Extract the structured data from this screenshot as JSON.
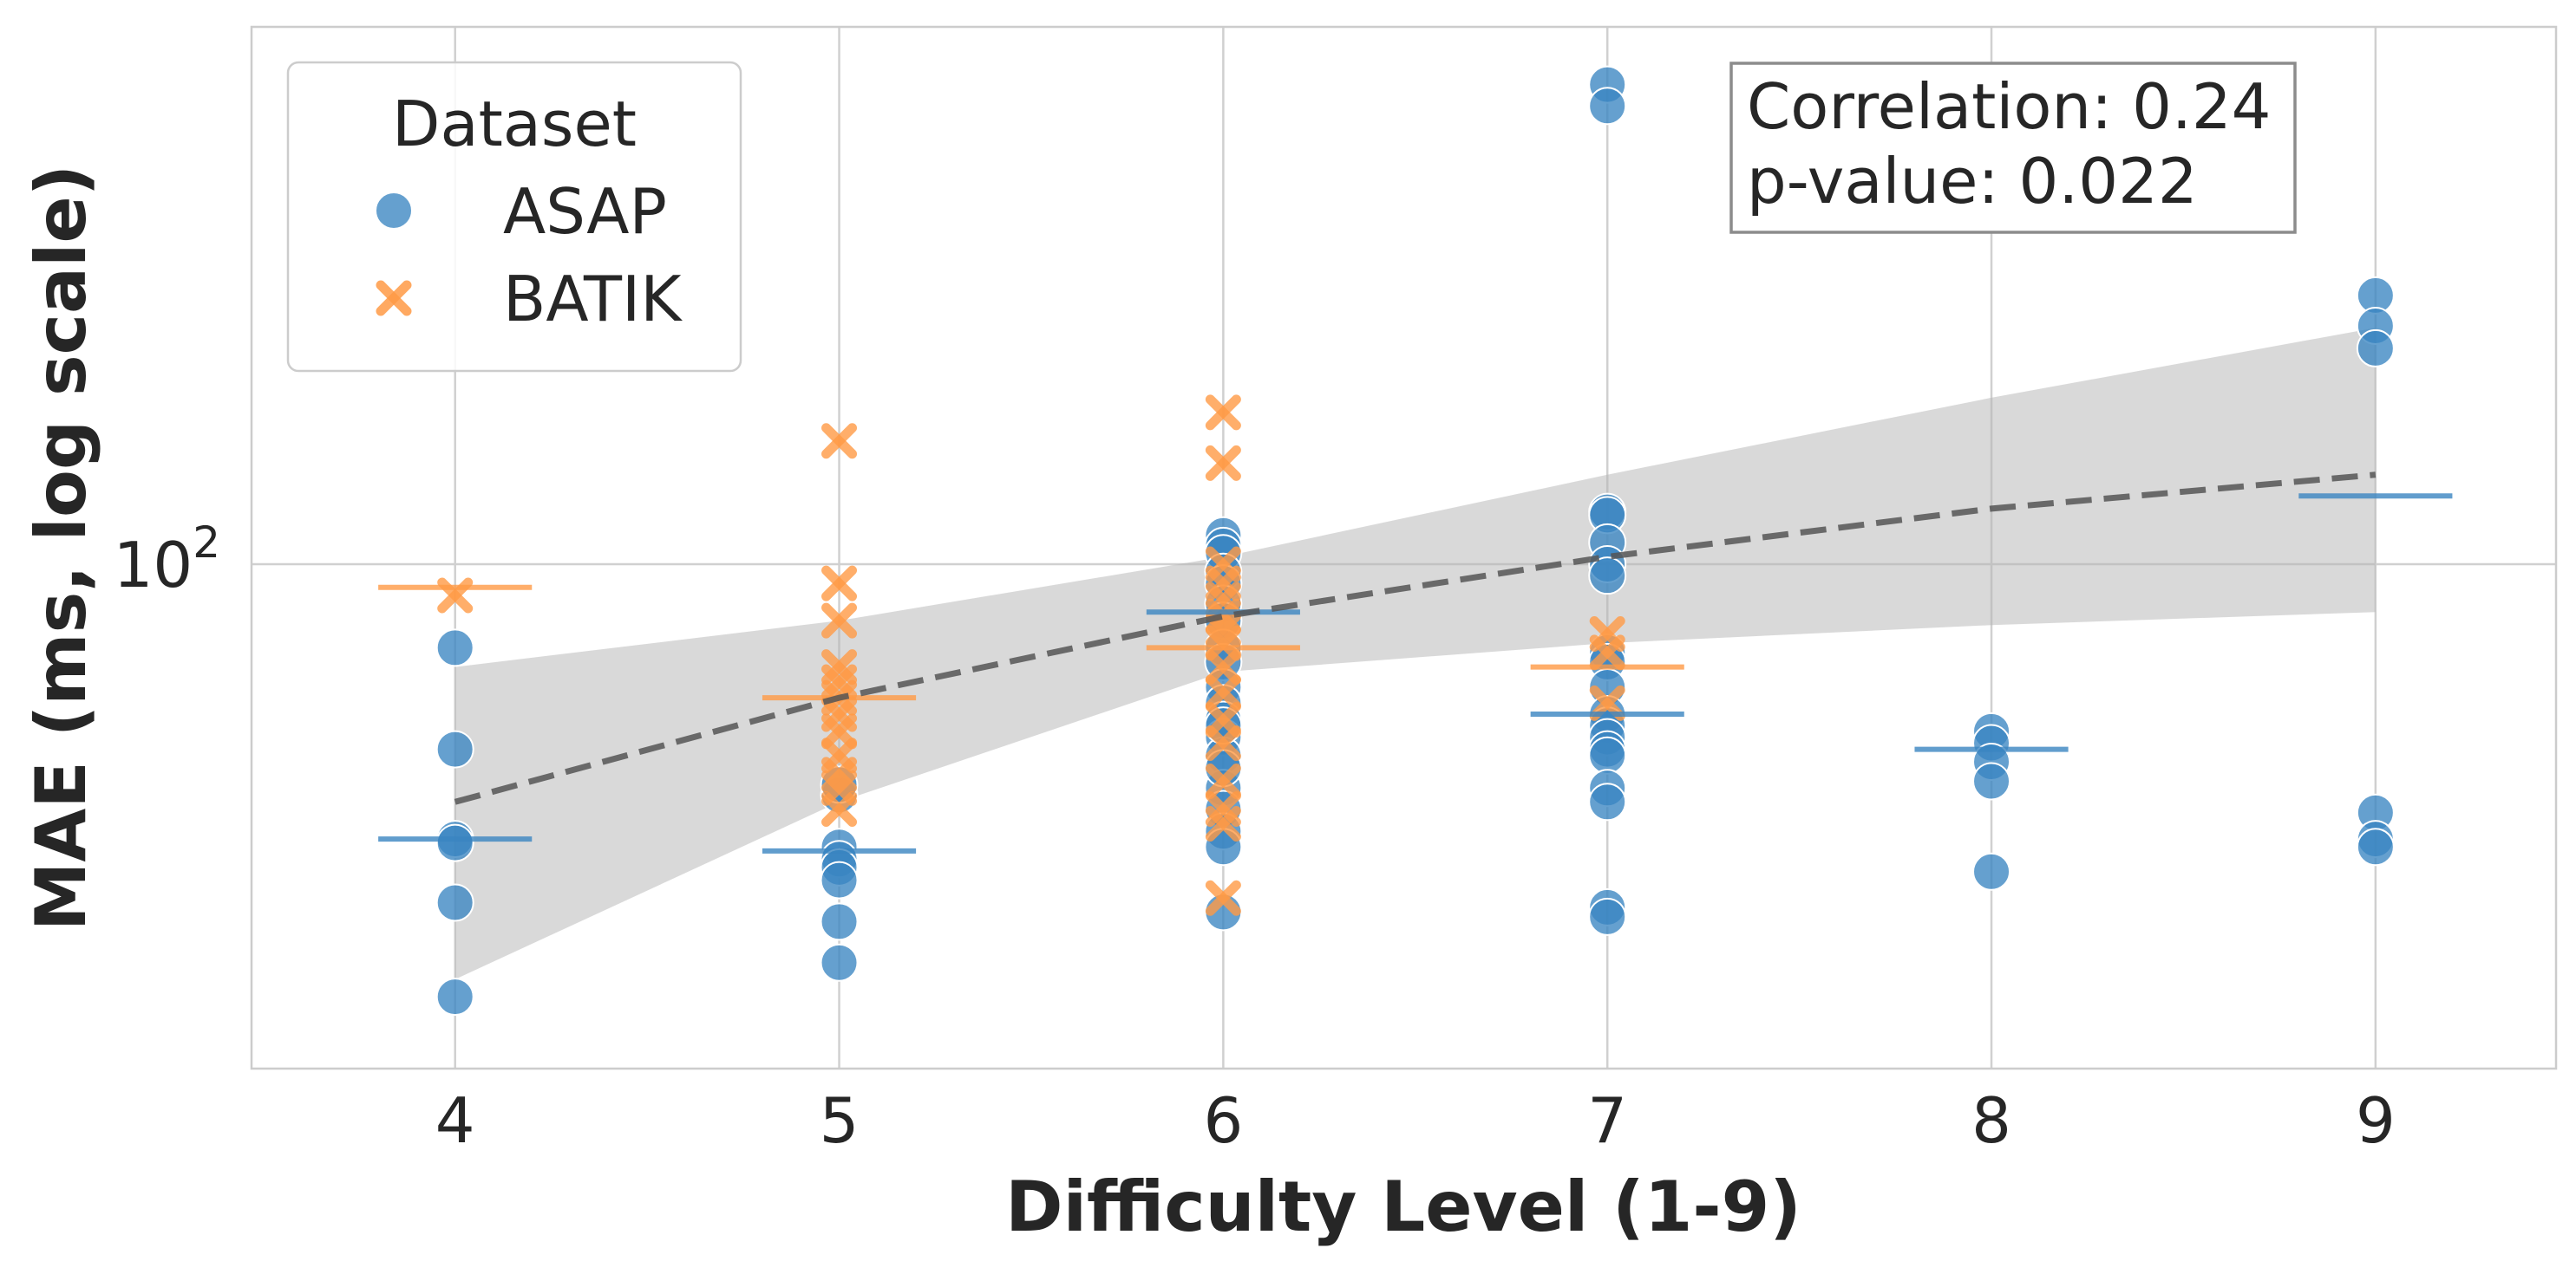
{
  "chart_data": {
    "type": "scatter",
    "title": "",
    "xlabel": "Difficulty Level (1-9)",
    "ylabel": "MAE (ms, log scale)",
    "xlim": [
      3.47,
      9.47
    ],
    "ylim": [
      26,
      420
    ],
    "yscale": "log",
    "grid": true,
    "x_ticks": [
      4,
      5,
      6,
      7,
      8,
      9
    ],
    "y_tick": {
      "value": 100,
      "base": "10",
      "exponent": "2"
    },
    "legend": {
      "title": "Dataset",
      "position": "top-left",
      "entries": [
        {
          "name": "ASAP",
          "marker": "circle",
          "color": "#3a85c1"
        },
        {
          "name": "BATIK",
          "marker": "x",
          "color": "#ff9a45"
        }
      ]
    },
    "annotation": {
      "line1": "Correlation: 0.24",
      "line2": "p-value: 0.022",
      "position": "top-right"
    },
    "series": [
      {
        "name": "ASAP",
        "color": "#3a85c1",
        "points": [
          [
            4,
            80
          ],
          [
            4,
            61
          ],
          [
            4,
            48
          ],
          [
            4,
            47.5
          ],
          [
            4,
            40.5
          ],
          [
            4,
            31.5
          ],
          [
            5,
            47
          ],
          [
            5,
            45.5
          ],
          [
            5,
            44.5
          ],
          [
            5,
            43
          ],
          [
            5,
            38.5
          ],
          [
            5,
            34.5
          ],
          [
            5,
            54
          ],
          [
            5,
            55.5
          ],
          [
            6,
            108
          ],
          [
            6,
            105
          ],
          [
            6,
            103
          ],
          [
            6,
            98
          ],
          [
            6,
            95
          ],
          [
            6,
            90
          ],
          [
            6,
            86
          ],
          [
            6,
            80
          ],
          [
            6,
            77
          ],
          [
            6,
            72
          ],
          [
            6,
            69
          ],
          [
            6,
            66
          ],
          [
            6,
            63
          ],
          [
            6,
            60
          ],
          [
            6,
            55
          ],
          [
            6,
            52
          ],
          [
            6,
            49
          ],
          [
            6,
            47
          ],
          [
            6,
            39.5
          ],
          [
            6,
            65
          ],
          [
            6,
            58
          ],
          [
            7,
            360
          ],
          [
            7,
            340
          ],
          [
            7,
            115
          ],
          [
            7,
            114
          ],
          [
            7,
            106
          ],
          [
            7,
            100
          ],
          [
            7,
            97
          ],
          [
            7,
            79
          ],
          [
            7,
            77
          ],
          [
            7,
            72
          ],
          [
            7,
            67
          ],
          [
            7,
            65
          ],
          [
            7,
            63
          ],
          [
            7,
            61
          ],
          [
            7,
            60
          ],
          [
            7,
            55
          ],
          [
            7,
            53
          ],
          [
            7,
            40
          ],
          [
            7,
            39
          ],
          [
            8,
            64
          ],
          [
            8,
            62
          ],
          [
            8,
            59
          ],
          [
            8,
            56
          ],
          [
            8,
            44
          ],
          [
            9,
            205
          ],
          [
            9,
            189
          ],
          [
            9,
            178
          ],
          [
            9,
            51.5
          ],
          [
            9,
            48
          ],
          [
            9,
            47
          ]
        ],
        "medians": [
          [
            4,
            48
          ],
          [
            5,
            46.5
          ],
          [
            6,
            88
          ],
          [
            7,
            67
          ],
          [
            8,
            61
          ],
          [
            9,
            120
          ]
        ]
      },
      {
        "name": "BATIK",
        "color": "#ff9a45",
        "points": [
          [
            4,
            92
          ],
          [
            5,
            139
          ],
          [
            5,
            95
          ],
          [
            5,
            86
          ],
          [
            5,
            76
          ],
          [
            5,
            73
          ],
          [
            5,
            70
          ],
          [
            5,
            67
          ],
          [
            5,
            64
          ],
          [
            5,
            60
          ],
          [
            5,
            57
          ],
          [
            5,
            55
          ],
          [
            5,
            52
          ],
          [
            6,
            150
          ],
          [
            6,
            131
          ],
          [
            6,
            100
          ],
          [
            6,
            95
          ],
          [
            6,
            91
          ],
          [
            6,
            87
          ],
          [
            6,
            84
          ],
          [
            6,
            81
          ],
          [
            6,
            76
          ],
          [
            6,
            71
          ],
          [
            6,
            66
          ],
          [
            6,
            62
          ],
          [
            6,
            56
          ],
          [
            6,
            52
          ],
          [
            6,
            50
          ],
          [
            6,
            41
          ],
          [
            7,
            83
          ],
          [
            7,
            79
          ],
          [
            7,
            69
          ]
        ],
        "medians": [
          [
            4,
            94
          ],
          [
            5,
            70
          ],
          [
            6,
            80
          ],
          [
            7,
            76
          ]
        ]
      }
    ],
    "regression": {
      "style": "dashed",
      "color": "#555555",
      "x": [
        4,
        5,
        6,
        7,
        8,
        9
      ],
      "y": [
        53,
        70,
        87,
        102,
        116,
        127
      ],
      "ci_lower": [
        33,
        53,
        75,
        81,
        85,
        88
      ],
      "ci_upper": [
        76,
        86,
        102,
        127,
        156,
        188
      ]
    }
  }
}
